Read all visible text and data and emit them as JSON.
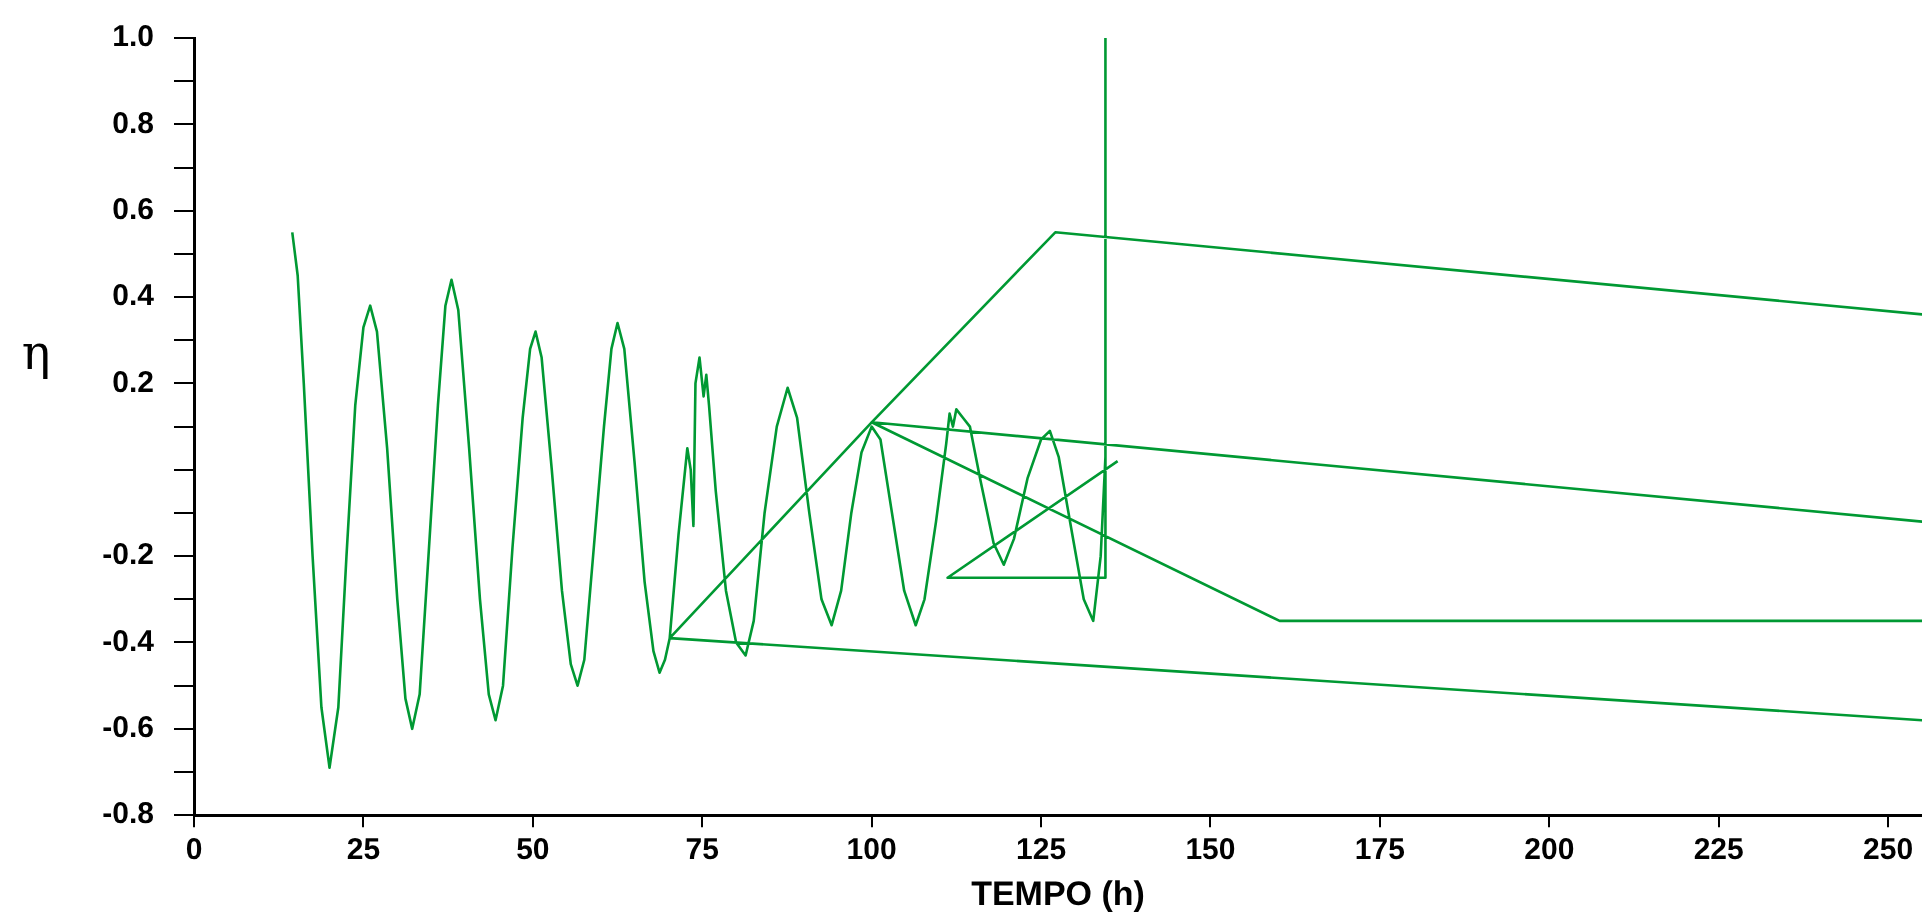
{
  "chart_data": {
    "type": "line",
    "xlabel": "TEMPO (h)",
    "ylabel": "η",
    "xlim": [
      0,
      255
    ],
    "xticks": [
      0,
      25,
      50,
      75,
      100,
      125,
      150,
      175,
      200,
      225,
      250
    ],
    "ylim": [
      -0.8,
      1.0
    ],
    "yticks": [
      -0.8,
      {
        "value": -0.7,
        "label": null
      },
      -0.6,
      {
        "value": -0.5,
        "label": null
      },
      -0.4,
      {
        "value": -0.3,
        "label": null
      },
      -0.2,
      {
        "value": -0.1,
        "label": null
      },
      {
        "value": 0,
        "label": null
      },
      {
        "value": 0.1,
        "label": null
      },
      0.2,
      {
        "value": 0.3,
        "label": null
      },
      0.4,
      {
        "value": 0.5,
        "label": null
      },
      0.6,
      {
        "value": 0.7,
        "label": null
      },
      0.8,
      {
        "value": 0.9,
        "label": null
      },
      {
        "value": 1.0,
        "label": "1.0"
      }
    ],
    "grid": false,
    "legend": false,
    "marker": "none",
    "line_style": "solid",
    "series": [
      {
        "color": "#009933",
        "x": [
          14.5,
          15.3,
          16.2,
          17.5,
          18.8,
          20,
          21.3,
          22.5,
          23.8,
          25,
          26,
          27,
          28.5,
          30,
          31.2,
          32.2,
          33.3,
          34.6,
          36,
          37.1,
          38,
          39,
          40.6,
          42.2,
          43.5,
          44.5,
          45.6,
          47,
          48.5,
          49.6,
          50.4,
          51.3,
          52.8,
          54.3,
          55.6,
          56.6,
          57.6,
          59,
          60.5,
          61.6,
          62.5,
          63.5,
          65,
          66.5,
          67.8,
          68.7,
          69.5,
          70.2,
          255,
          70.2,
          100,
          127.1,
          255,
          127.1,
          100,
          255,
          100,
          160.2,
          255,
          160.2,
          100,
          70.2,
          71.5,
          72.8,
          73.3,
          73.7,
          74,
          74.6,
          75.2,
          75.6,
          76,
          77,
          78.5,
          80,
          81.4,
          82.6,
          84.2,
          86,
          87.6,
          89,
          90.8,
          92.6,
          94.1,
          95.5,
          97,
          98.5,
          100,
          101.3,
          103,
          104.8,
          106.5,
          107.8,
          109.5,
          111,
          111.5,
          112,
          112.5,
          113.5,
          114.5,
          116,
          118,
          119.5,
          121,
          123,
          125,
          126.3,
          127.6,
          129.5,
          131.3,
          132.7,
          133.8,
          134.5,
          134.5,
          134.5,
          111.2,
          136.3
        ],
        "values": [
          0.55,
          0.45,
          0.2,
          -0.2,
          -0.55,
          -0.69,
          -0.55,
          -0.2,
          0.15,
          0.33,
          0.38,
          0.32,
          0.05,
          -0.3,
          -0.53,
          -0.6,
          -0.52,
          -0.2,
          0.15,
          0.38,
          0.44,
          0.37,
          0.05,
          -0.3,
          -0.52,
          -0.58,
          -0.5,
          -0.18,
          0.12,
          0.28,
          0.32,
          0.26,
          0,
          -0.28,
          -0.45,
          -0.5,
          -0.44,
          -0.18,
          0.1,
          0.28,
          0.34,
          0.28,
          0.02,
          -0.26,
          -0.42,
          -0.47,
          -0.44,
          -0.39,
          -0.58,
          -0.39,
          0.11,
          0.55,
          0.36,
          0.55,
          0.11,
          -0.12,
          0.11,
          -0.35,
          -0.35,
          -0.35,
          0.11,
          -0.39,
          -0.15,
          0.05,
          0,
          -0.13,
          0.2,
          0.26,
          0.17,
          0.22,
          0.15,
          -0.05,
          -0.28,
          -0.4,
          -0.43,
          -0.35,
          -0.1,
          0.1,
          0.19,
          0.12,
          -0.1,
          -0.3,
          -0.36,
          -0.28,
          -0.1,
          0.04,
          0.1,
          0.07,
          -0.1,
          -0.28,
          -0.36,
          -0.3,
          -0.12,
          0.06,
          0.13,
          0.1,
          0.14,
          0.12,
          0.1,
          -0.02,
          -0.17,
          -0.22,
          -0.16,
          -0.02,
          0.07,
          0.09,
          0.03,
          -0.14,
          -0.3,
          -0.35,
          -0.2,
          0.03,
          1.0,
          -0.25,
          -0.25,
          0.02
        ]
      }
    ]
  }
}
